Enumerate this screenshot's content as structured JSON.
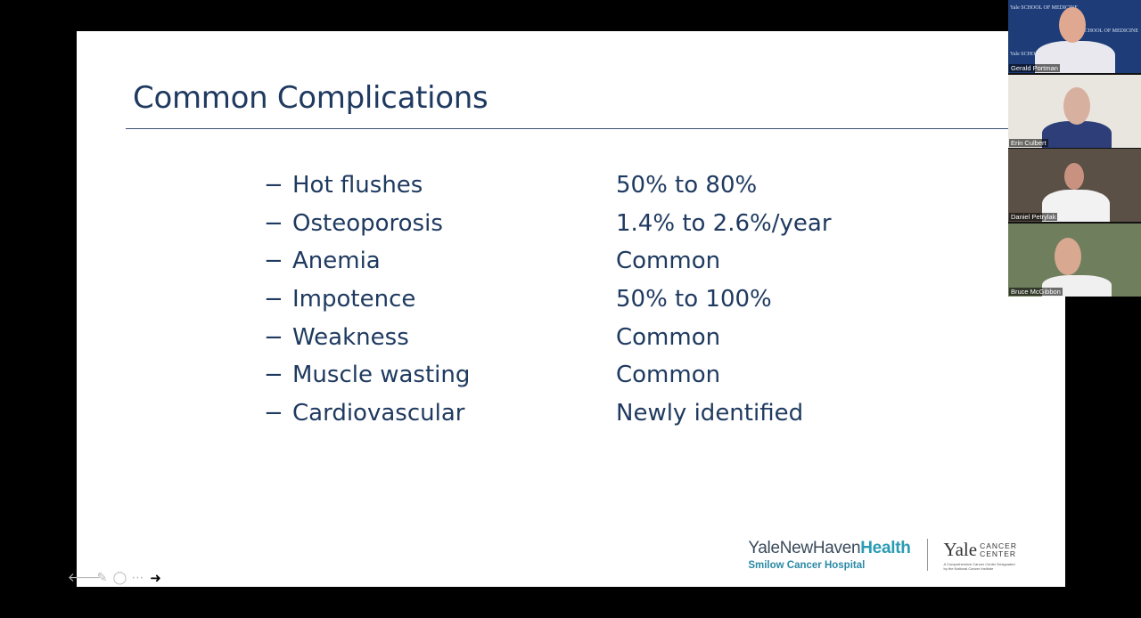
{
  "slide": {
    "title": "Common Complications",
    "dash": "−",
    "rows": [
      {
        "item": "Hot flushes",
        "value": "50% to 80%"
      },
      {
        "item": "Osteoporosis",
        "value": "1.4% to 2.6%/year"
      },
      {
        "item": "Anemia",
        "value": "Common"
      },
      {
        "item": "Impotence",
        "value": "50% to 100%"
      },
      {
        "item": "Weakness",
        "value": "Common"
      },
      {
        "item": "Muscle wasting",
        "value": "Common"
      },
      {
        "item": "Cardiovascular",
        "value": "Newly identified"
      }
    ],
    "footer": {
      "ynhh_prefix": "YaleNewHaven",
      "ynhh_bold": "Health",
      "smilow": "Smilow Cancer Hospital",
      "yale": "Yale",
      "cancer_line1": "CANCER",
      "cancer_line2": "CENTER",
      "tagline1": "A Comprehensive Cancer Center Designated",
      "tagline2": "by the National Cancer Institute"
    }
  },
  "toolbar": {
    "icons": [
      "arrow-left-icon",
      "pen-icon",
      "zoom-icon",
      "more-icon",
      "arrow-right-icon"
    ]
  },
  "participants": [
    {
      "name": "Gerald Portman",
      "bg": "#1d3c78",
      "backdrop_text": "Yale SCHOOL OF MEDICINE"
    },
    {
      "name": "Erin Culbert",
      "bg": "#e9e6e0"
    },
    {
      "name": "Daniel Petrylak",
      "bg": "#5b5046"
    },
    {
      "name": "Bruce McGibbon",
      "bg": "#6f7f5d"
    }
  ]
}
